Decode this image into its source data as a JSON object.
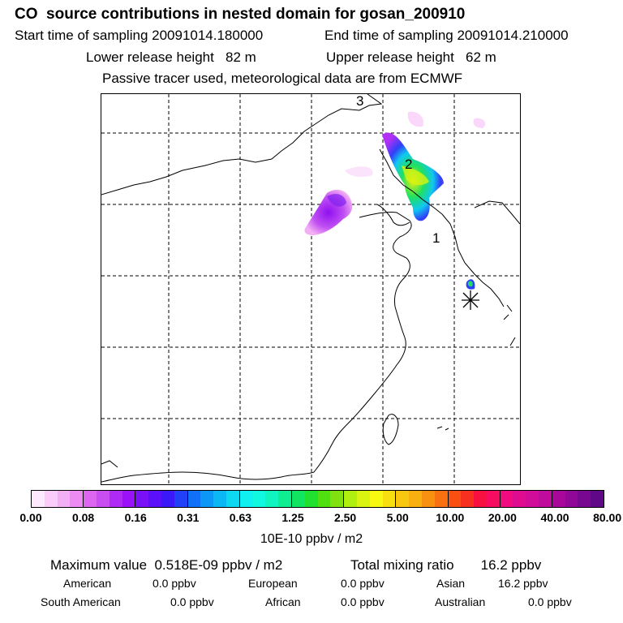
{
  "header": {
    "title": "CO  source contributions in nested domain for gosan_200910",
    "start_label": "Start time of sampling 20091014.180000",
    "end_label": "End time of sampling 20091014.210000",
    "lower_label": "Lower release height   82 m",
    "upper_label": "Upper release height   62 m",
    "tracer_note": "Passive tracer used, meteorological data are from ECMWF"
  },
  "map": {
    "region_labels": [
      "1",
      "2",
      "3"
    ],
    "receptor_marker": "asterisk-icon"
  },
  "legend": {
    "ticks": [
      "0.00",
      "0.08",
      "0.16",
      "0.31",
      "0.63",
      "1.25",
      "2.50",
      "5.00",
      "10.00",
      "20.00",
      "40.00",
      "80.00"
    ],
    "unit": "10E-10 ppbv / m2",
    "colors": [
      "#fde8fd",
      "#f9ccf9",
      "#f3aff3",
      "#ec8bf1",
      "#dd66f0",
      "#c94ef2",
      "#b02af6",
      "#9a12f8",
      "#7a10f8",
      "#5a10f8",
      "#3a18f8",
      "#2240f8",
      "#1070f8",
      "#0c96f6",
      "#0cb8f4",
      "#0ed8f0",
      "#10f0f0",
      "#10f8e0",
      "#10f4c0",
      "#10ec90",
      "#10e460",
      "#20e030",
      "#50e010",
      "#80e010",
      "#b0f010",
      "#d8f410",
      "#f8f810",
      "#f8e010",
      "#f8c810",
      "#f8b010",
      "#f89010",
      "#f87010",
      "#f85010",
      "#f83020",
      "#f81040",
      "#f80c60",
      "#f00c80",
      "#e00c90",
      "#d00c98",
      "#c00c9c",
      "#a8089a",
      "#900898",
      "#780890",
      "#600888"
    ]
  },
  "summary": {
    "max_label": "Maximum value  0.518E-09 ppbv / m2",
    "total_label": "Total mixing ratio       16.2 ppbv",
    "regions": [
      {
        "name": "American",
        "value": "0.0 ppbv"
      },
      {
        "name": "European",
        "value": "0.0 ppbv"
      },
      {
        "name": "Asian",
        "value": "16.2 ppbv"
      },
      {
        "name": "South American",
        "value": "0.0 ppbv"
      },
      {
        "name": "African",
        "value": "0.0 ppbv"
      },
      {
        "name": "Australian",
        "value": "0.0 ppbv"
      }
    ]
  }
}
